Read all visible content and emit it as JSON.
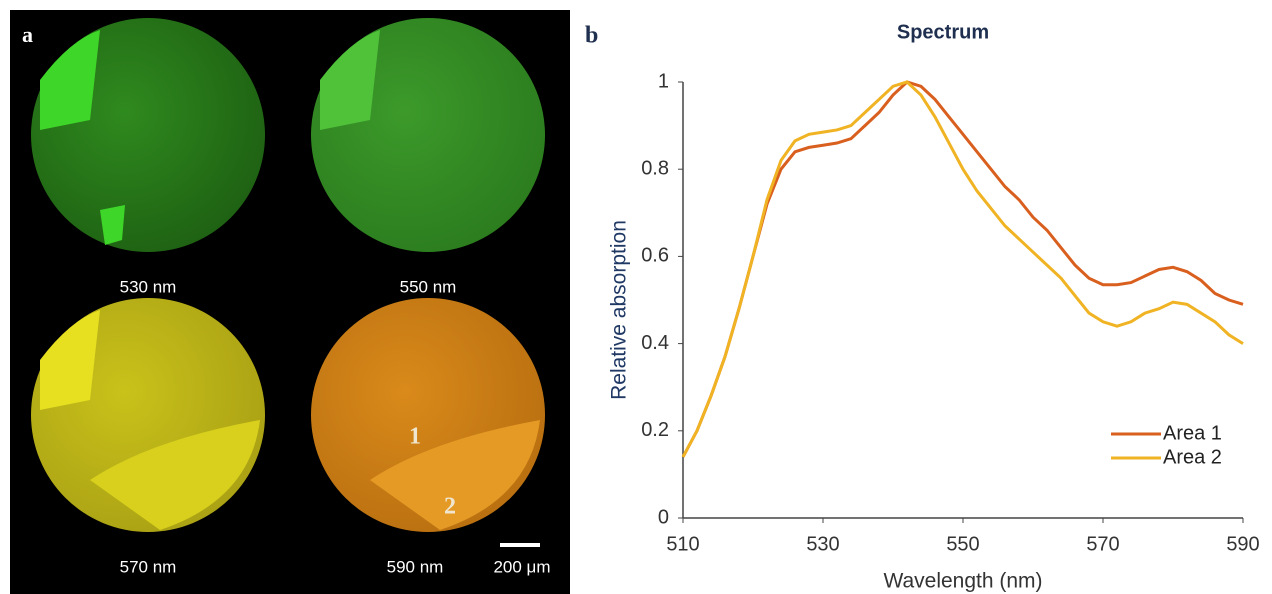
{
  "panel_a": {
    "label": "a",
    "images": [
      "530 nm",
      "550 nm",
      "570 nm",
      "590 nm"
    ],
    "area_marks": [
      "1",
      "2"
    ],
    "scale_bar": "200 μm"
  },
  "chart_data": {
    "type": "line",
    "panel_label": "b",
    "title": "Spectrum",
    "x_label": "Wavelength  (nm)",
    "y_label": "Relative absorption",
    "x": [
      510,
      512,
      514,
      516,
      518,
      520,
      522,
      524,
      526,
      528,
      530,
      532,
      534,
      536,
      538,
      540,
      542,
      544,
      546,
      548,
      550,
      552,
      554,
      556,
      558,
      560,
      562,
      564,
      566,
      568,
      570,
      572,
      574,
      576,
      578,
      580,
      582,
      584,
      586,
      588,
      590
    ],
    "series": [
      {
        "name": "Area 1",
        "color": "#d95f1e",
        "values": [
          0.14,
          0.2,
          0.28,
          0.37,
          0.48,
          0.6,
          0.72,
          0.8,
          0.84,
          0.85,
          0.855,
          0.86,
          0.87,
          0.9,
          0.93,
          0.97,
          1.0,
          0.99,
          0.96,
          0.92,
          0.88,
          0.84,
          0.8,
          0.76,
          0.73,
          0.69,
          0.66,
          0.62,
          0.58,
          0.55,
          0.535,
          0.535,
          0.54,
          0.555,
          0.57,
          0.575,
          0.565,
          0.545,
          0.515,
          0.5,
          0.49
        ]
      },
      {
        "name": "Area 2",
        "color": "#f0b323",
        "values": [
          0.14,
          0.2,
          0.28,
          0.37,
          0.48,
          0.6,
          0.73,
          0.82,
          0.865,
          0.88,
          0.885,
          0.89,
          0.9,
          0.93,
          0.96,
          0.99,
          1.0,
          0.97,
          0.92,
          0.86,
          0.8,
          0.75,
          0.71,
          0.67,
          0.64,
          0.61,
          0.58,
          0.55,
          0.51,
          0.47,
          0.45,
          0.44,
          0.45,
          0.47,
          0.48,
          0.495,
          0.49,
          0.47,
          0.45,
          0.42,
          0.4
        ]
      }
    ],
    "xlim": [
      510,
      590
    ],
    "ylim": [
      0,
      1
    ],
    "xticks": [
      510,
      530,
      550,
      570,
      590
    ],
    "yticks": [
      0,
      0.2,
      0.4,
      0.6,
      0.8,
      1
    ],
    "grid": false,
    "legend": "lower right"
  }
}
